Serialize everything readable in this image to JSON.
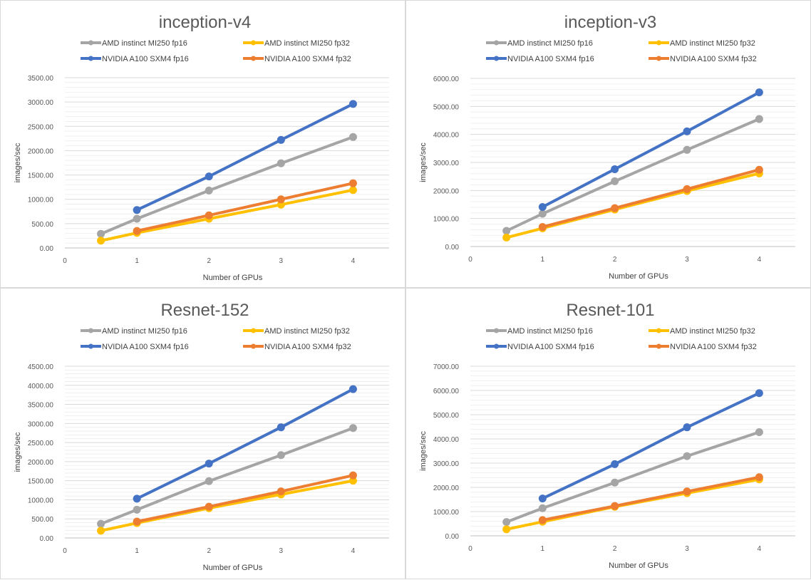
{
  "chart_data": [
    {
      "type": "line",
      "title": "inception-v4",
      "xlabel": "Number of GPUs",
      "ylabel": "images/sec",
      "xlim": [
        0,
        4.5
      ],
      "xticks": [
        "0",
        "1",
        "2",
        "3",
        "4"
      ],
      "ylim": [
        0,
        3500
      ],
      "yticks": [
        "0.00",
        "500.00",
        "1000.00",
        "1500.00",
        "2000.00",
        "2500.00",
        "3000.00",
        "3500.00"
      ],
      "series": [
        {
          "name": "AMD instinct MI250 fp16",
          "color": "#a5a5a5",
          "x": [
            0.5,
            1,
            2,
            3,
            4
          ],
          "y": [
            290,
            600,
            1180,
            1740,
            2280
          ]
        },
        {
          "name": "AMD instinct MI250 fp32",
          "color": "#ffc000",
          "x": [
            0.5,
            1,
            2,
            3,
            4
          ],
          "y": [
            150,
            310,
            600,
            890,
            1190
          ]
        },
        {
          "name": "NVIDIA A100 SXM4 fp16",
          "color": "#4472c4",
          "x": [
            1,
            2,
            3,
            4
          ],
          "y": [
            780,
            1470,
            2220,
            2960
          ]
        },
        {
          "name": "NVIDIA A100 SXM4 fp32",
          "color": "#ed7d31",
          "x": [
            1,
            2,
            3,
            4
          ],
          "y": [
            350,
            670,
            1000,
            1330
          ]
        }
      ]
    },
    {
      "type": "line",
      "title": "inception-v3",
      "xlabel": "Number of GPUs",
      "ylabel": "images/sec",
      "xlim": [
        0,
        4.5
      ],
      "xticks": [
        "0",
        "1",
        "2",
        "3",
        "4"
      ],
      "ylim": [
        0,
        6000
      ],
      "yticks": [
        "0.00",
        "1000.00",
        "2000.00",
        "3000.00",
        "4000.00",
        "5000.00",
        "6000.00"
      ],
      "series": [
        {
          "name": "AMD instinct MI250 fp16",
          "color": "#a5a5a5",
          "x": [
            0.5,
            1,
            2,
            3,
            4
          ],
          "y": [
            560,
            1170,
            2330,
            3450,
            4550
          ]
        },
        {
          "name": "AMD instinct MI250 fp32",
          "color": "#ffc000",
          "x": [
            0.5,
            1,
            2,
            3,
            4
          ],
          "y": [
            320,
            650,
            1320,
            1980,
            2610
          ]
        },
        {
          "name": "NVIDIA A100 SXM4 fp16",
          "color": "#4472c4",
          "x": [
            1,
            2,
            3,
            4
          ],
          "y": [
            1410,
            2760,
            4110,
            5500
          ]
        },
        {
          "name": "NVIDIA A100 SXM4 fp32",
          "color": "#ed7d31",
          "x": [
            1,
            2,
            3,
            4
          ],
          "y": [
            700,
            1370,
            2050,
            2740
          ]
        }
      ]
    },
    {
      "type": "line",
      "title": "Resnet-152",
      "xlabel": "Number of GPUs",
      "ylabel": "images/sec",
      "xlim": [
        0,
        4.5
      ],
      "xticks": [
        "0",
        "1",
        "2",
        "3",
        "4"
      ],
      "ylim": [
        0,
        4500
      ],
      "yticks": [
        "0.00",
        "500.00",
        "1000.00",
        "1500.00",
        "2000.00",
        "2500.00",
        "3000.00",
        "3500.00",
        "4000.00",
        "4500.00"
      ],
      "series": [
        {
          "name": "AMD instinct MI250 fp16",
          "color": "#a5a5a5",
          "x": [
            0.5,
            1,
            2,
            3,
            4
          ],
          "y": [
            370,
            740,
            1490,
            2170,
            2880
          ]
        },
        {
          "name": "AMD instinct MI250 fp32",
          "color": "#ffc000",
          "x": [
            0.5,
            1,
            2,
            3,
            4
          ],
          "y": [
            190,
            390,
            780,
            1140,
            1500
          ]
        },
        {
          "name": "NVIDIA A100 SXM4 fp16",
          "color": "#4472c4",
          "x": [
            1,
            2,
            3,
            4
          ],
          "y": [
            1030,
            1950,
            2900,
            3900
          ]
        },
        {
          "name": "NVIDIA A100 SXM4 fp32",
          "color": "#ed7d31",
          "x": [
            1,
            2,
            3,
            4
          ],
          "y": [
            430,
            820,
            1220,
            1640
          ]
        }
      ]
    },
    {
      "type": "line",
      "title": "Resnet-101",
      "xlabel": "Number of GPUs",
      "ylabel": "images/sec",
      "xlim": [
        0,
        4.5
      ],
      "xticks": [
        "0",
        "1",
        "2",
        "3",
        "4"
      ],
      "ylim": [
        0,
        7000
      ],
      "yticks": [
        "0.00",
        "1000.00",
        "2000.00",
        "3000.00",
        "4000.00",
        "5000.00",
        "6000.00",
        "7000.00"
      ],
      "series": [
        {
          "name": "AMD instinct MI250 fp16",
          "color": "#a5a5a5",
          "x": [
            0.5,
            1,
            2,
            3,
            4
          ],
          "y": [
            570,
            1140,
            2200,
            3290,
            4280
          ]
        },
        {
          "name": "AMD instinct MI250 fp32",
          "color": "#ffc000",
          "x": [
            0.5,
            1,
            2,
            3,
            4
          ],
          "y": [
            270,
            580,
            1200,
            1760,
            2330
          ]
        },
        {
          "name": "NVIDIA A100 SXM4 fp16",
          "color": "#4472c4",
          "x": [
            1,
            2,
            3,
            4
          ],
          "y": [
            1540,
            2960,
            4480,
            5890
          ]
        },
        {
          "name": "NVIDIA A100 SXM4 fp32",
          "color": "#ed7d31",
          "x": [
            1,
            2,
            3,
            4
          ],
          "y": [
            650,
            1230,
            1830,
            2420
          ]
        }
      ]
    }
  ]
}
